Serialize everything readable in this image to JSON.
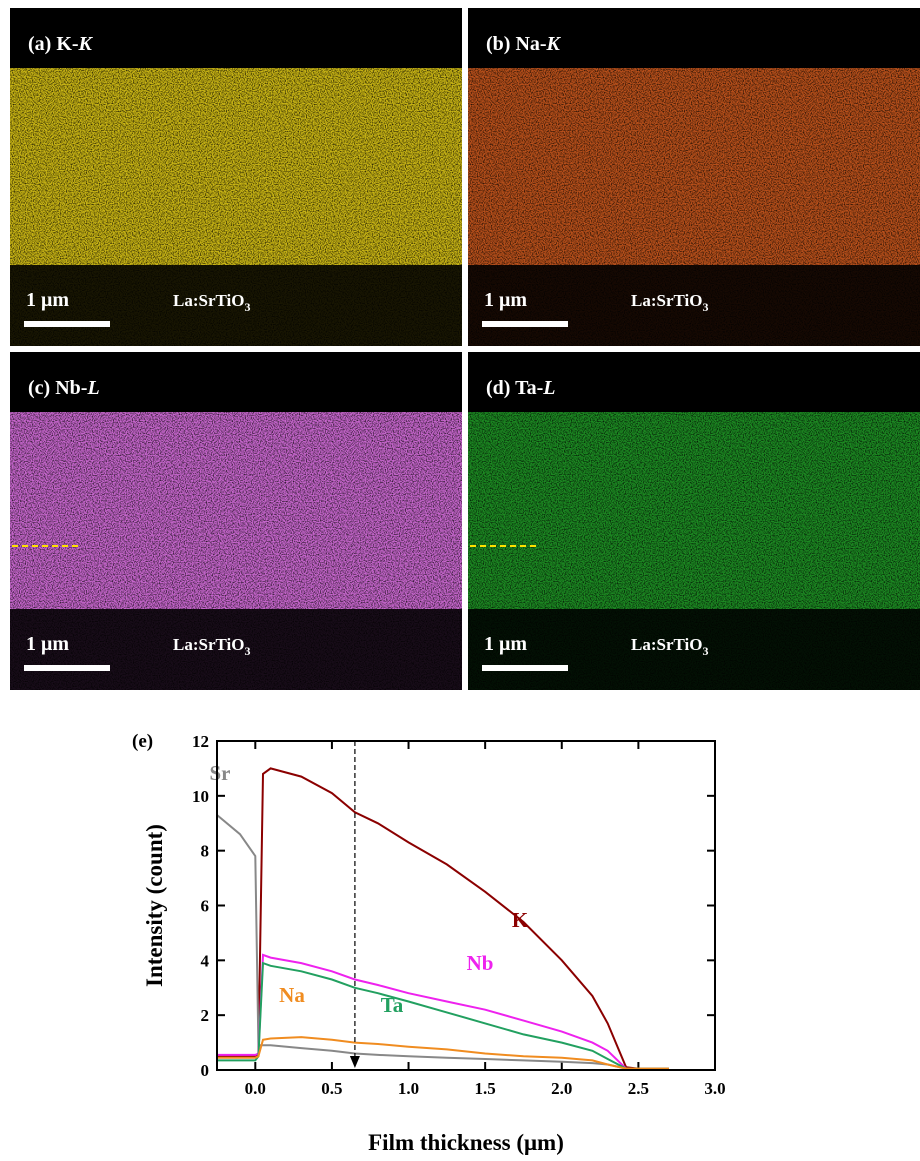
{
  "panels": [
    {
      "label": [
        "(a) K-",
        "K"
      ],
      "scale": "1 μm",
      "substrate": [
        "La:SrTiO",
        "3"
      ],
      "color": "#c8b414",
      "guide": false
    },
    {
      "label": [
        "(b) Na-",
        "K"
      ],
      "scale": "1 μm",
      "substrate": [
        "La:SrTiO",
        "3"
      ],
      "color": "#b8501a",
      "guide": false
    },
    {
      "label": [
        "(c) Nb-",
        "L"
      ],
      "scale": "1 μm",
      "substrate": [
        "La:SrTiO",
        "3"
      ],
      "color": "#c666cc",
      "guide": true
    },
    {
      "label": [
        "(d) Ta-",
        "L"
      ],
      "scale": "1 μm",
      "substrate": [
        "La:SrTiO",
        "3"
      ],
      "color": "#1c8a22",
      "guide": true
    }
  ],
  "chart_data": {
    "type": "line",
    "panel_label": "(e)",
    "x_label": "Film thickness (μm)",
    "y_label": "Intensity (count)",
    "x": [
      -0.25,
      -0.1,
      0.0,
      0.02,
      0.05,
      0.1,
      0.3,
      0.5,
      0.65,
      0.8,
      1.0,
      1.25,
      1.5,
      1.75,
      2.0,
      2.2,
      2.3,
      2.42,
      2.5,
      2.7
    ],
    "series": [
      {
        "name": "K",
        "color": "#8b0000",
        "values": [
          0.5,
          0.5,
          0.5,
          0.6,
          10.8,
          11.0,
          10.7,
          10.1,
          9.4,
          9.0,
          8.3,
          7.5,
          6.5,
          5.4,
          4.0,
          2.7,
          1.7,
          0.1,
          0.05,
          0.05
        ]
      },
      {
        "name": "Sr",
        "color": "#888888",
        "values": [
          9.3,
          8.6,
          7.8,
          0.9,
          0.9,
          0.9,
          0.8,
          0.7,
          0.6,
          0.55,
          0.5,
          0.45,
          0.4,
          0.35,
          0.3,
          0.25,
          0.2,
          0.05,
          0.05,
          0.05
        ]
      },
      {
        "name": "Nb",
        "color": "#ee22ee",
        "values": [
          0.55,
          0.55,
          0.55,
          0.6,
          4.2,
          4.1,
          3.9,
          3.6,
          3.3,
          3.1,
          2.8,
          2.5,
          2.2,
          1.8,
          1.4,
          1.0,
          0.7,
          0.05,
          0.05,
          0.05
        ]
      },
      {
        "name": "Ta",
        "color": "#22a060",
        "values": [
          0.35,
          0.35,
          0.35,
          0.5,
          3.9,
          3.8,
          3.6,
          3.3,
          3.0,
          2.8,
          2.5,
          2.1,
          1.7,
          1.3,
          1.0,
          0.7,
          0.4,
          0.05,
          0.05,
          0.05
        ]
      },
      {
        "name": "Na",
        "color": "#f08c20",
        "values": [
          0.45,
          0.45,
          0.45,
          0.5,
          1.1,
          1.15,
          1.2,
          1.1,
          1.0,
          0.95,
          0.85,
          0.75,
          0.6,
          0.5,
          0.45,
          0.35,
          0.2,
          0.05,
          0.05,
          0.05
        ]
      }
    ],
    "marker_x": 0.65,
    "xlim": [
      -0.25,
      3.0
    ],
    "xticks": [
      {
        "value": 0,
        "label": "0.0"
      },
      0.5,
      {
        "value": 1,
        "label": "1.0"
      },
      1.5,
      {
        "value": 2,
        "label": "2.0"
      },
      2.5,
      {
        "value": 3,
        "label": "3.0"
      }
    ],
    "ylim": [
      0,
      12
    ],
    "yticks": [
      0,
      2,
      4,
      6,
      8,
      10,
      12
    ]
  }
}
